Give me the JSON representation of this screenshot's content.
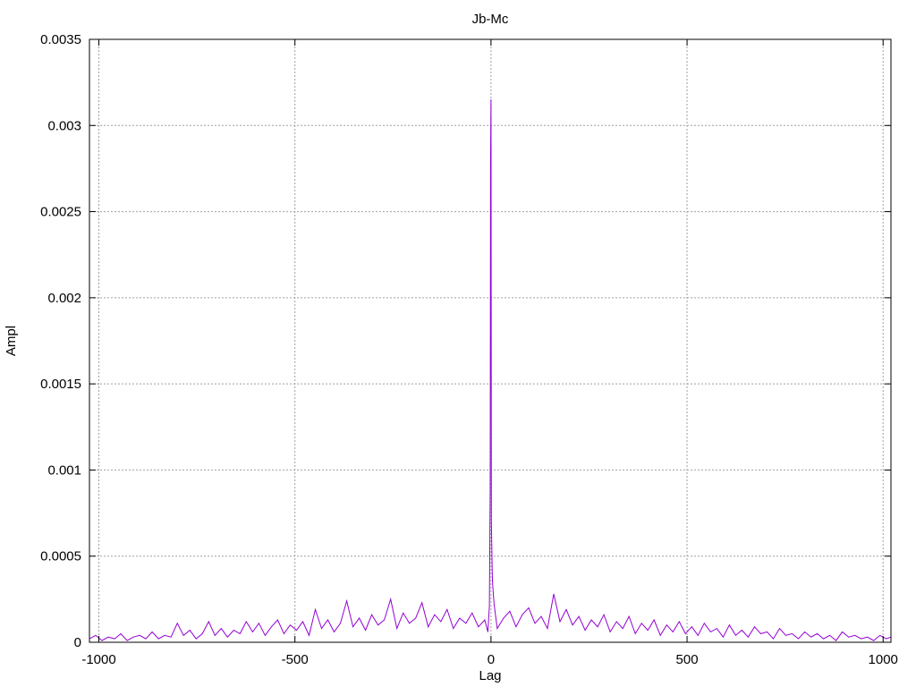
{
  "chart_data": {
    "type": "line",
    "title": "Jb-Mc",
    "xlabel": "Lag",
    "ylabel": "Ampl",
    "xlim": [
      -1024,
      1020
    ],
    "ylim": [
      0,
      0.0035
    ],
    "grid": true,
    "legend": "none",
    "line_color": "#9400d3",
    "x_ticks": [
      -1000,
      -500,
      0,
      500,
      1000
    ],
    "x_tick_labels": [
      "-1000",
      "-500",
      "0",
      "500",
      "1000"
    ],
    "y_ticks": [
      0,
      0.0005,
      0.001,
      0.0015,
      0.002,
      0.0025,
      0.003,
      0.0035
    ],
    "y_tick_labels": [
      "0",
      "0.0005",
      "0.001",
      "0.0015",
      "0.002",
      "0.0025",
      "0.003",
      "0.0035"
    ],
    "series": [
      {
        "x": [
          -1024,
          -1008,
          -992,
          -976,
          -960,
          -944,
          -928,
          -912,
          -896,
          -880,
          -864,
          -848,
          -832,
          -816,
          -800,
          -784,
          -768,
          -752,
          -736,
          -720,
          -704,
          -688,
          -672,
          -656,
          -640,
          -624,
          -608,
          -592,
          -576,
          -560,
          -544,
          -528,
          -512,
          -496,
          -480,
          -464,
          -448,
          -432,
          -416,
          -400,
          -384,
          -368,
          -352,
          -336,
          -320,
          -304,
          -288,
          -272,
          -256,
          -240,
          -224,
          -208,
          -192,
          -176,
          -160,
          -144,
          -128,
          -112,
          -96,
          -80,
          -64,
          -48,
          -32,
          -16,
          -8,
          -4,
          -2,
          -1,
          0,
          1,
          2,
          3,
          4,
          6,
          8,
          12,
          16,
          32,
          48,
          64,
          80,
          96,
          112,
          128,
          144,
          160,
          176,
          192,
          208,
          224,
          240,
          256,
          272,
          288,
          304,
          320,
          336,
          352,
          368,
          384,
          400,
          416,
          432,
          448,
          464,
          480,
          496,
          512,
          528,
          544,
          560,
          576,
          592,
          608,
          624,
          640,
          656,
          672,
          688,
          704,
          720,
          736,
          752,
          768,
          784,
          800,
          816,
          832,
          848,
          864,
          880,
          896,
          912,
          928,
          944,
          960,
          976,
          992,
          1008,
          1020
        ],
        "y": [
          2e-05,
          4e-05,
          1e-05,
          3e-05,
          2e-05,
          5e-05,
          1e-05,
          3e-05,
          4e-05,
          2e-05,
          6e-05,
          2e-05,
          4e-05,
          3e-05,
          0.00011,
          4e-05,
          7e-05,
          2e-05,
          5e-05,
          0.00012,
          4e-05,
          8e-05,
          3e-05,
          7e-05,
          5e-05,
          0.00012,
          6e-05,
          0.00011,
          4e-05,
          9e-05,
          0.00013,
          5e-05,
          0.0001,
          7e-05,
          0.00012,
          4e-05,
          0.00019,
          8e-05,
          0.00013,
          6e-05,
          0.00011,
          0.00024,
          9e-05,
          0.00014,
          7e-05,
          0.00016,
          0.0001,
          0.00013,
          0.00025,
          8e-05,
          0.00017,
          0.00011,
          0.00014,
          0.00023,
          9e-05,
          0.00016,
          0.00012,
          0.00019,
          8e-05,
          0.00014,
          0.00011,
          0.00017,
          9e-05,
          0.00013,
          6e-05,
          0.00021,
          0.0009,
          0.00278,
          0.00315,
          0.0007,
          0.00055,
          0.00042,
          0.00035,
          0.00028,
          0.00022,
          0.00015,
          8e-05,
          0.00014,
          0.00018,
          9e-05,
          0.00016,
          0.0002,
          0.00011,
          0.00015,
          8e-05,
          0.00028,
          0.00012,
          0.00019,
          0.0001,
          0.00015,
          7e-05,
          0.00013,
          9e-05,
          0.00016,
          6e-05,
          0.00012,
          8e-05,
          0.00015,
          5e-05,
          0.00011,
          7e-05,
          0.00013,
          4e-05,
          0.0001,
          6e-05,
          0.00012,
          5e-05,
          9e-05,
          4e-05,
          0.00011,
          6e-05,
          8e-05,
          3e-05,
          0.0001,
          4e-05,
          7e-05,
          3e-05,
          9e-05,
          5e-05,
          6e-05,
          2e-05,
          8e-05,
          4e-05,
          5e-05,
          2e-05,
          6e-05,
          3e-05,
          5e-05,
          2e-05,
          4e-05,
          1e-05,
          6e-05,
          3e-05,
          4e-05,
          2e-05,
          3e-05,
          1e-05,
          4e-05,
          2e-05,
          3e-05
        ]
      }
    ]
  }
}
